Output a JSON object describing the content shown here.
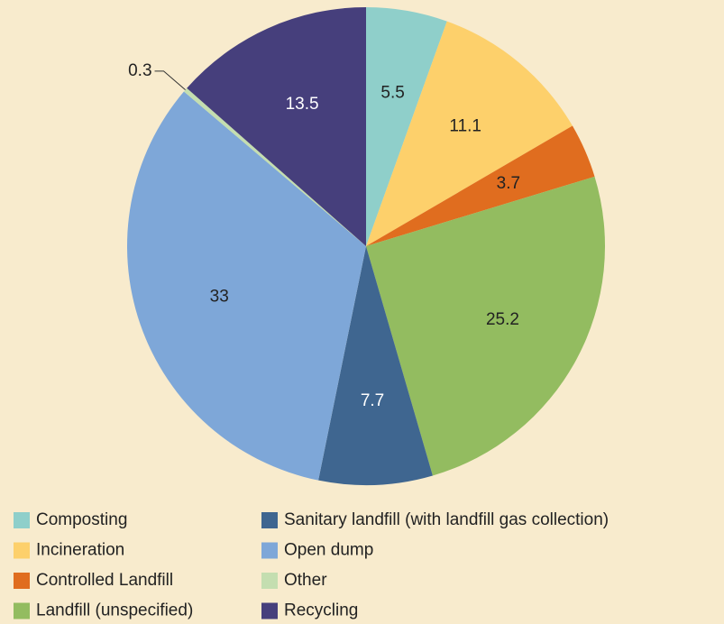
{
  "chart_data": {
    "type": "pie",
    "categories": [
      "Composting",
      "Incineration",
      "Controlled Landfill",
      "Landfill (unspecified)",
      "Sanitary landfill (with landfill gas collection)",
      "Open dump",
      "Other",
      "Recycling"
    ],
    "values": [
      5.5,
      11.1,
      3.7,
      25.2,
      7.7,
      33,
      0.3,
      13.5
    ],
    "colors": [
      "#8fcfca",
      "#fdd06b",
      "#e06d1f",
      "#93bc60",
      "#3f6690",
      "#7ea7d8",
      "#c4deb0",
      "#463f7c"
    ]
  }
}
